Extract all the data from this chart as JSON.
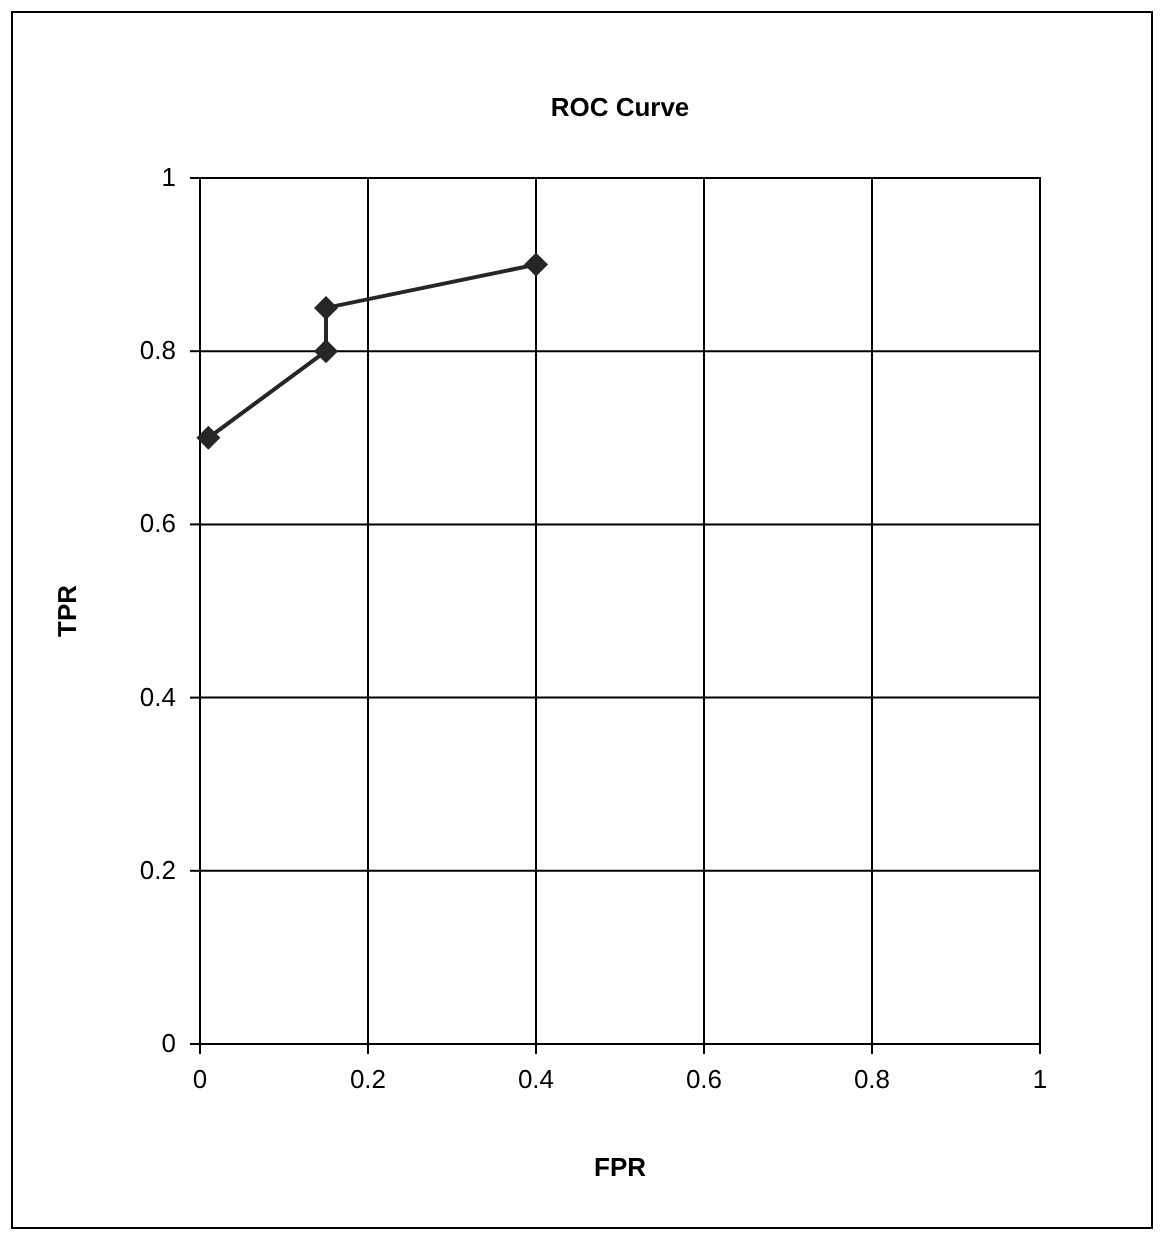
{
  "chart_data": {
    "type": "line",
    "title": "ROC Curve",
    "xlabel": "FPR",
    "ylabel": "TPR",
    "x": [
      0.01,
      0.15,
      0.15,
      0.4
    ],
    "series": [
      {
        "color": "#262626",
        "values": [
          0.7,
          0.8,
          0.85,
          0.9
        ]
      }
    ],
    "xlim": [
      0,
      1
    ],
    "xticks": [
      0,
      0.2,
      0.4,
      0.6,
      0.8,
      1
    ],
    "ylim": [
      0,
      1
    ],
    "yticks": [
      0,
      0.2,
      0.4,
      0.6,
      0.8,
      1
    ],
    "grid": true,
    "marker": "diamond",
    "line_style": "solid"
  }
}
